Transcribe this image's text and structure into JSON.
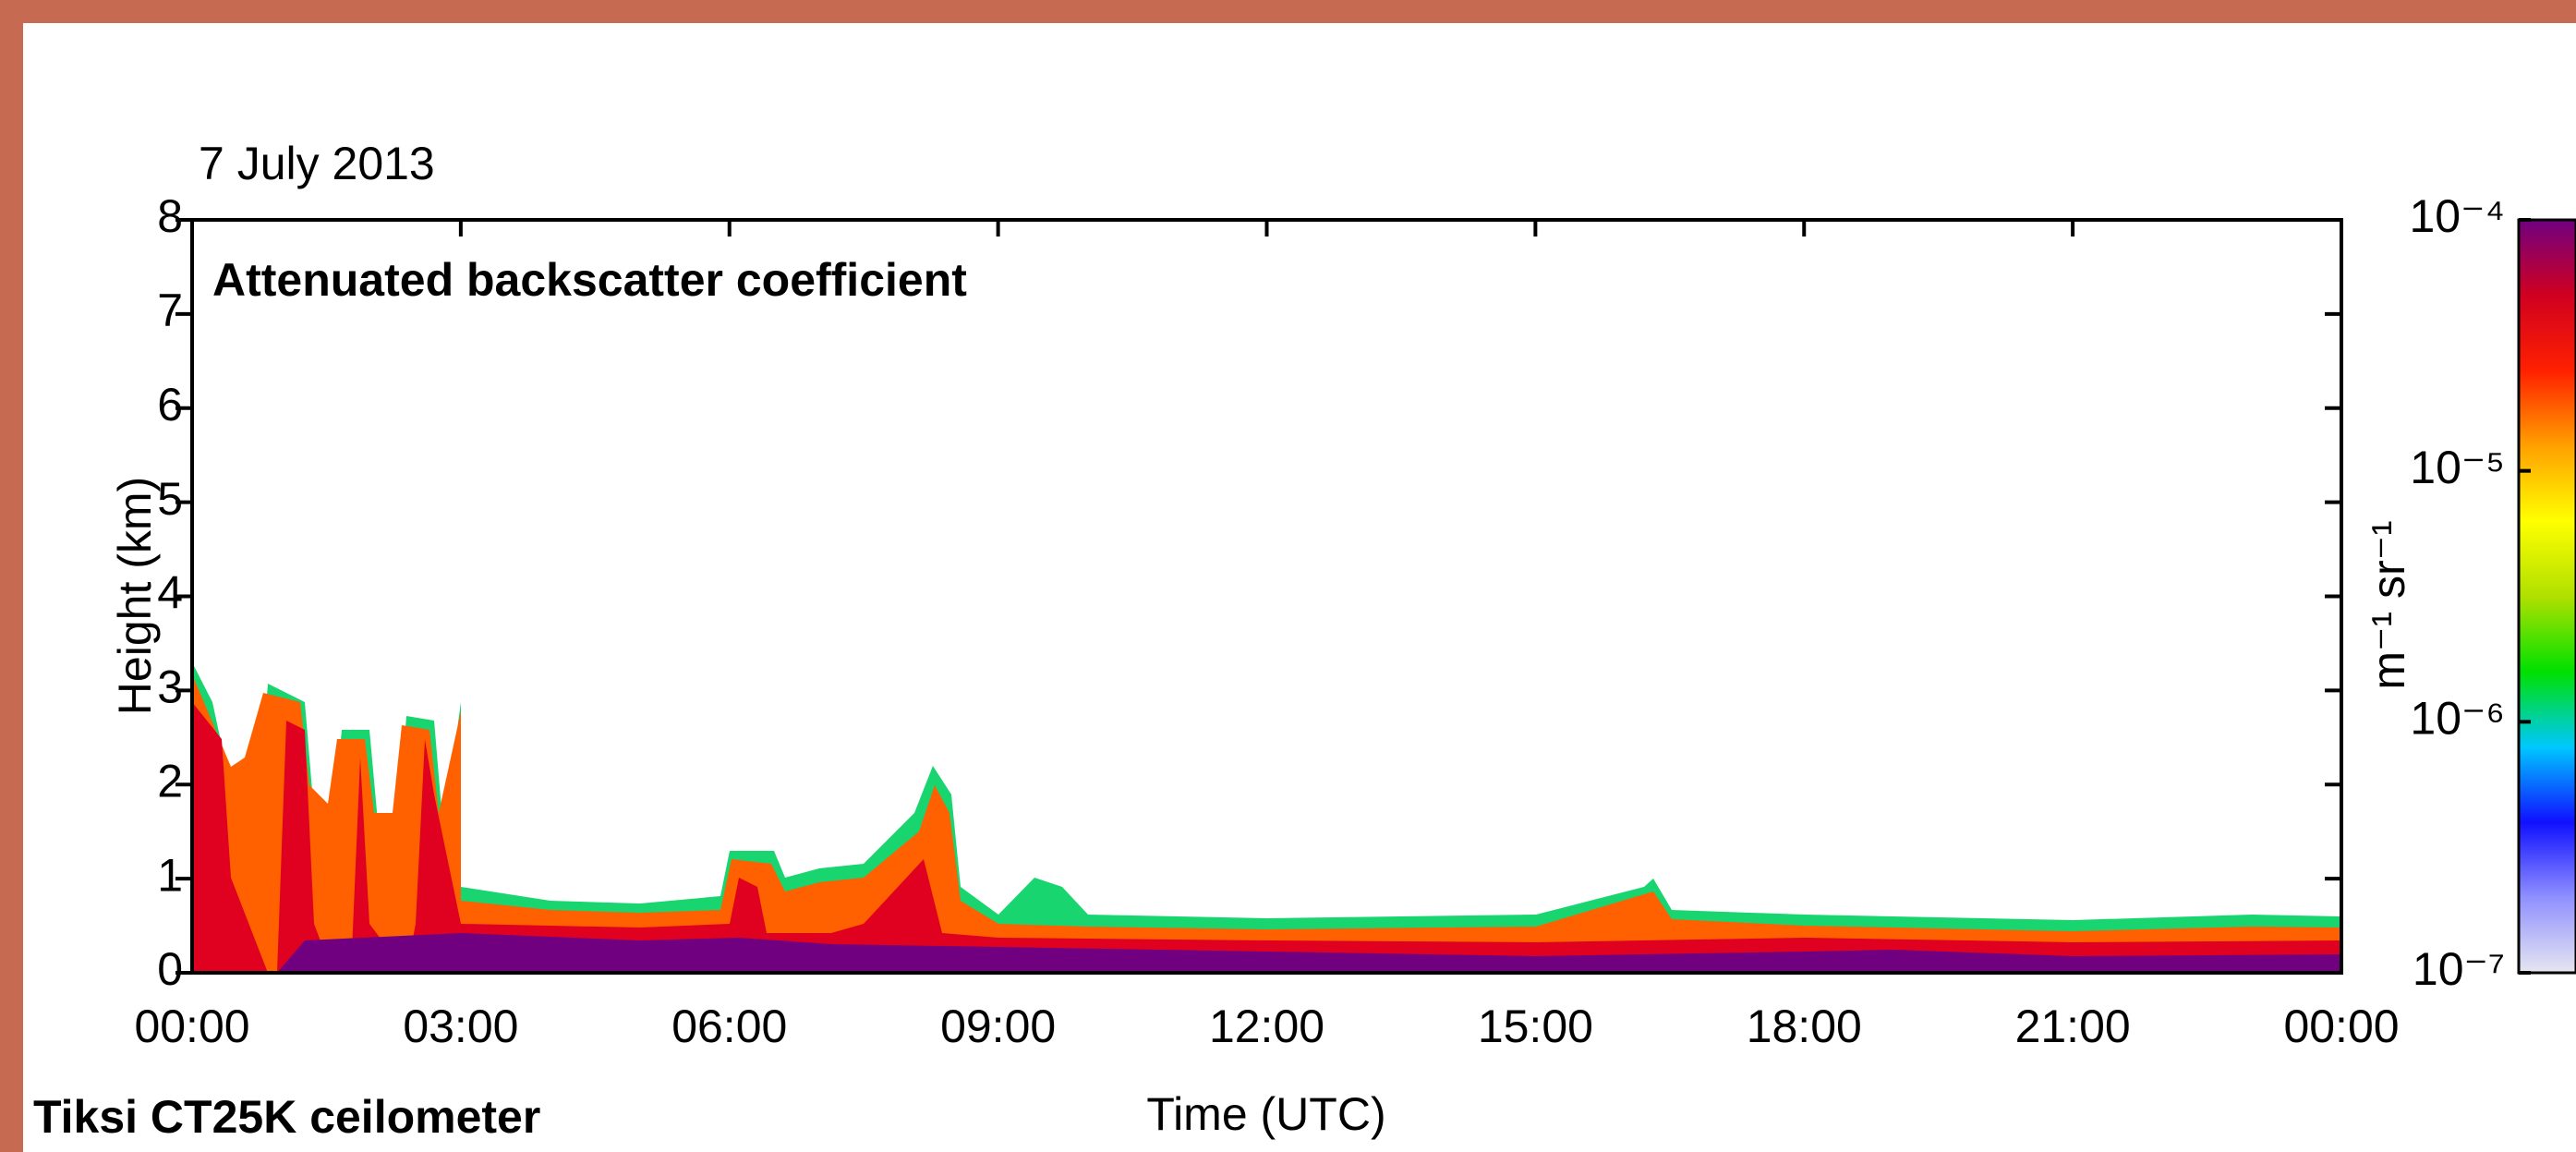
{
  "chart_data": {
    "type": "heatmap",
    "title": "Attenuated backscatter coefficient",
    "date": "7 July 2013",
    "footer": "Tiksi CT25K ceilometer",
    "x_label": "Time (UTC)",
    "y_label": "Height (km)",
    "xlim": [
      0,
      24
    ],
    "xticks": [
      {
        "value": 0,
        "label": "00:00"
      },
      {
        "value": 3,
        "label": "03:00"
      },
      {
        "value": 6,
        "label": "06:00"
      },
      {
        "value": 9,
        "label": "09:00"
      },
      {
        "value": 12,
        "label": "12:00"
      },
      {
        "value": 15,
        "label": "15:00"
      },
      {
        "value": 18,
        "label": "18:00"
      },
      {
        "value": 21,
        "label": "21:00"
      },
      {
        "value": 24,
        "label": "00:00"
      }
    ],
    "ylim": [
      0,
      8
    ],
    "yticks": [
      0,
      1,
      2,
      3,
      4,
      5,
      6,
      7,
      8
    ],
    "colorbar": {
      "label": "m⁻¹ sr⁻¹",
      "log_scale": true,
      "lim": [
        1e-07,
        0.0001
      ],
      "ticks": [
        {
          "value": 1e-07,
          "label": "10⁻⁷"
        },
        {
          "value": 1e-06,
          "label": "10⁻⁶"
        },
        {
          "value": 1e-05,
          "label": "10⁻⁵"
        },
        {
          "value": 0.0001,
          "label": "10⁻⁴"
        }
      ],
      "colors": [
        "#e6e6f0",
        "#9090ff",
        "#1010ff",
        "#00c8ff",
        "#00e000",
        "#b0e000",
        "#ffff00",
        "#ffa000",
        "#ff2000",
        "#d00020",
        "#700080"
      ]
    }
  }
}
